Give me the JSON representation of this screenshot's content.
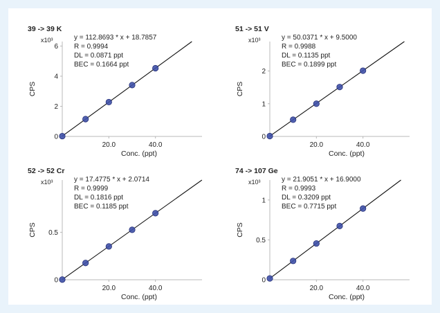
{
  "chart_data": [
    {
      "type": "scatter",
      "title": "39 -> 39 K",
      "stats": [
        "y = 112.8693 * x  + 18.7857",
        "R = 0.9994",
        "DL = 0.0871 ppt",
        "BEC = 0.1664 ppt"
      ],
      "xlabel": "Conc. (ppt)",
      "ylabel": "CPS",
      "y_multiplier": "x10³",
      "xlim": [
        0,
        60
      ],
      "ylim": [
        0,
        6.3
      ],
      "xticks": [
        20,
        40
      ],
      "xtick_labels": [
        "20.0",
        "40.0"
      ],
      "yticks": [
        0,
        2,
        4,
        6
      ],
      "ytick_labels": [
        "0",
        "2",
        "4",
        "6"
      ],
      "x": [
        0,
        10,
        20,
        30,
        40
      ],
      "y": [
        0.02,
        1.15,
        2.28,
        3.41,
        4.53
      ],
      "fit": {
        "slope": 0.1128693,
        "intercept": 0.0187857
      }
    },
    {
      "type": "scatter",
      "title": "51 -> 51 V",
      "stats": [
        "y = 50.0371 * x  + 9.5000",
        "R = 0.9988",
        "DL = 0.1135 ppt",
        "BEC = 0.1899 ppt"
      ],
      "xlabel": "Conc. (ppt)",
      "ylabel": "CPS",
      "y_multiplier": "x10³",
      "xlim": [
        0,
        60
      ],
      "ylim": [
        0,
        2.9
      ],
      "xticks": [
        20,
        40
      ],
      "xtick_labels": [
        "20.0",
        "40.0"
      ],
      "yticks": [
        0,
        1,
        2
      ],
      "ytick_labels": [
        "0",
        "1",
        "2"
      ],
      "x": [
        0,
        10,
        20,
        30,
        40
      ],
      "y": [
        0.01,
        0.51,
        1.0,
        1.51,
        2.01
      ],
      "fit": {
        "slope": 0.0500371,
        "intercept": 0.0095
      }
    },
    {
      "type": "scatter",
      "title": "52 -> 52 Cr",
      "stats": [
        "y = 17.4775 * x  + 2.0714",
        "R = 0.9999",
        "DL = 0.1816 ppt",
        "BEC = 0.1185 ppt"
      ],
      "xlabel": "Conc. (ppt)",
      "ylabel": "CPS",
      "y_multiplier": "x10³",
      "xlim": [
        0,
        60
      ],
      "ylim": [
        0,
        1.05
      ],
      "xticks": [
        20,
        40
      ],
      "xtick_labels": [
        "20.0",
        "40.0"
      ],
      "yticks": [
        0,
        0.5
      ],
      "ytick_labels": [
        "0",
        "0.5"
      ],
      "x": [
        0,
        10,
        20,
        30,
        40
      ],
      "y": [
        0.002,
        0.177,
        0.351,
        0.526,
        0.701
      ],
      "fit": {
        "slope": 0.0174775,
        "intercept": 0.0020714
      }
    },
    {
      "type": "scatter",
      "title": "74 -> 107 Ge",
      "stats": [
        "y = 21.9051 * x  + 16.9000",
        "R = 0.9993",
        "DL = 0.3209 ppt",
        "BEC = 0.7715 ppt"
      ],
      "xlabel": "Conc. (ppt)",
      "ylabel": "CPS",
      "y_multiplier": "x10³",
      "xlim": [
        0,
        60
      ],
      "ylim": [
        0,
        1.25
      ],
      "xticks": [
        20,
        40
      ],
      "xtick_labels": [
        "20.0",
        "40.0"
      ],
      "yticks": [
        0,
        0.5,
        1
      ],
      "ytick_labels": [
        "0",
        "0.5",
        "1"
      ],
      "x": [
        0,
        10,
        20,
        30,
        40
      ],
      "y": [
        0.017,
        0.236,
        0.455,
        0.674,
        0.893
      ],
      "fit": {
        "slope": 0.0219051,
        "intercept": 0.0169
      }
    }
  ],
  "colors": {
    "marker": "#3f51a8",
    "marker_edge": "#27327a",
    "fit_line": "#111111",
    "axis": "#b8b8b8",
    "background": "#e9f3fb"
  }
}
